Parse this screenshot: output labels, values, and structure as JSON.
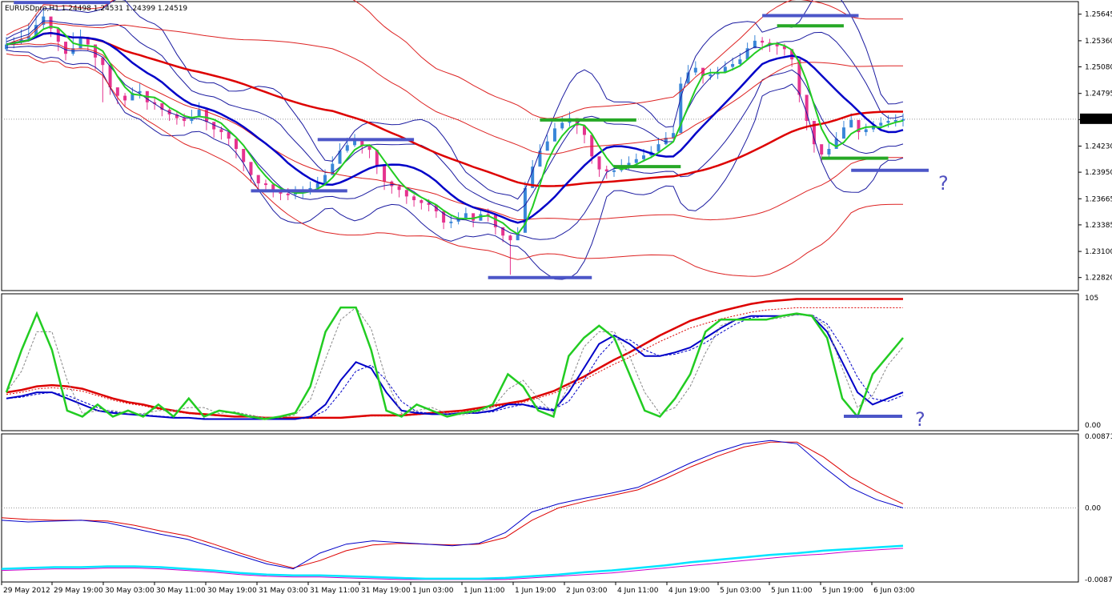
{
  "window": {
    "title": "EURUSDpro,H1  1.24498 1.24531 1.24399 1.24519",
    "current_price_label": "1.24519"
  },
  "colors": {
    "background": "#ffffff",
    "frame": "#000000",
    "bull_candle": "#3a86d8",
    "bear_candle": "#e5338f",
    "ma_fast": "#22cc22",
    "ma_mid": "#0000c8",
    "ma_slow": "#dd0000",
    "bands": "#1a1aa0",
    "bands_outer": "#dd2222",
    "annotation_blue": "#4c56c8",
    "annotation_green": "#26a826",
    "macd_signal": "#00e5ff",
    "macd_signal2": "#cc00cc",
    "question_mark": "#5050c0"
  },
  "annotations": {
    "question_marks": [
      "?",
      "?"
    ]
  },
  "chart_data": [
    {
      "type": "candlestick",
      "panel": "price",
      "symbol": "EURUSDpro",
      "timeframe": "H1",
      "ohlc": {
        "open": 1.24498,
        "high": 1.24531,
        "low": 1.24399,
        "close": 1.24519
      },
      "ylim": [
        1.2268,
        1.2578
      ],
      "y_ticks": [
        1.25645,
        1.2536,
        1.2508,
        1.24795,
        1.24515,
        1.2423,
        1.2395,
        1.23665,
        1.23385,
        1.231,
        1.2282
      ],
      "y_tick_labels": [
        "1.25645",
        "1.25360",
        "1.25080",
        "1.24795",
        "1.24515",
        "1.24230",
        "1.23950",
        "1.23665",
        "1.23385",
        "1.23100",
        "1.22820"
      ],
      "x_tick_labels": [
        "29 May 2012",
        "29 May 19:00",
        "30 May 03:00",
        "30 May 11:00",
        "30 May 19:00",
        "31 May 03:00",
        "31 May 11:00",
        "31 May 19:00",
        "1 Jun 03:00",
        "1 Jun 11:00",
        "1 Jun 19:00",
        "2 Jun 03:00",
        "4 Jun 11:00",
        "4 Jun 19:00",
        "5 Jun 03:00",
        "5 Jun 11:00",
        "5 Jun 19:00",
        "6 Jun 03:00"
      ],
      "closes": [
        1.2532,
        1.2535,
        1.2538,
        1.2541,
        1.2553,
        1.2562,
        1.2549,
        1.2535,
        1.2522,
        1.2528,
        1.254,
        1.2532,
        1.2518,
        1.251,
        1.2486,
        1.2477,
        1.2472,
        1.248,
        1.2482,
        1.247,
        1.2469,
        1.2462,
        1.2457,
        1.2453,
        1.245,
        1.2454,
        1.2462,
        1.2449,
        1.2441,
        1.2438,
        1.2431,
        1.242,
        1.2406,
        1.2392,
        1.2383,
        1.2382,
        1.2374,
        1.2372,
        1.2371,
        1.2374,
        1.2374,
        1.2378,
        1.2383,
        1.2392,
        1.2404,
        1.2418,
        1.2424,
        1.243,
        1.2423,
        1.2419,
        1.2402,
        1.2385,
        1.238,
        1.2376,
        1.2369,
        1.2365,
        1.2362,
        1.236,
        1.2353,
        1.2341,
        1.2342,
        1.2346,
        1.2351,
        1.2343,
        1.235,
        1.2349,
        1.2336,
        1.2327,
        1.2322,
        1.233,
        1.2378,
        1.2401,
        1.2418,
        1.2428,
        1.2442,
        1.2448,
        1.2453,
        1.2445,
        1.2435,
        1.2412,
        1.2398,
        1.2396,
        1.2397,
        1.2402,
        1.2405,
        1.2409,
        1.2413,
        1.2417,
        1.2425,
        1.2432,
        1.2437,
        1.249,
        1.2502,
        1.2507,
        1.2498,
        1.25,
        1.2502,
        1.2508,
        1.2511,
        1.2516,
        1.2528,
        1.2536,
        1.2534,
        1.2532,
        1.253,
        1.2527,
        1.2516,
        1.2478,
        1.245,
        1.2425,
        1.2414,
        1.242,
        1.2431,
        1.2443,
        1.2451,
        1.2438,
        1.2441,
        1.2445,
        1.2448,
        1.245,
        1.2451,
        1.2452
      ],
      "highs": [
        1.254,
        1.254,
        1.2548,
        1.2555,
        1.2565,
        1.257,
        1.256,
        1.2545,
        1.2532,
        1.2545,
        1.2548,
        1.254,
        1.2525,
        1.2515,
        1.2492,
        1.2482,
        1.248,
        1.2486,
        1.249,
        1.2476,
        1.2475,
        1.2468,
        1.2464,
        1.246,
        1.2458,
        1.2462,
        1.247,
        1.2455,
        1.2447,
        1.2444,
        1.2437,
        1.2426,
        1.2412,
        1.2398,
        1.2388,
        1.2387,
        1.2381,
        1.2377,
        1.2378,
        1.238,
        1.238,
        1.2385,
        1.239,
        1.2398,
        1.2412,
        1.2426,
        1.2432,
        1.2436,
        1.243,
        1.2425,
        1.241,
        1.2392,
        1.2386,
        1.2381,
        1.2374,
        1.2371,
        1.2366,
        1.2366,
        1.2358,
        1.2347,
        1.2349,
        1.2352,
        1.2357,
        1.2349,
        1.2356,
        1.2356,
        1.2343,
        1.2333,
        1.2328,
        1.2336,
        1.2385,
        1.2408,
        1.2425,
        1.2435,
        1.2448,
        1.2455,
        1.246,
        1.2452,
        1.2442,
        1.2418,
        1.2404,
        1.2402,
        1.2403,
        1.2409,
        1.2412,
        1.2415,
        1.242,
        1.2423,
        1.2432,
        1.2438,
        1.2444,
        1.2497,
        1.251,
        1.2514,
        1.2506,
        1.2506,
        1.2508,
        1.2514,
        1.2518,
        1.2523,
        1.2534,
        1.2542,
        1.254,
        1.2538,
        1.2535,
        1.2533,
        1.2523,
        1.2484,
        1.2457,
        1.243,
        1.242,
        1.2426,
        1.2438,
        1.245,
        1.2458,
        1.2444,
        1.2447,
        1.245,
        1.2454,
        1.2456,
        1.2457,
        1.2458
      ],
      "lows": [
        1.2525,
        1.2528,
        1.2532,
        1.2535,
        1.2545,
        1.2548,
        1.254,
        1.2525,
        1.2515,
        1.252,
        1.253,
        1.2525,
        1.2505,
        1.247,
        1.2478,
        1.2468,
        1.2465,
        1.2472,
        1.2474,
        1.2462,
        1.2462,
        1.2455,
        1.245,
        1.2446,
        1.2444,
        1.2447,
        1.2455,
        1.244,
        1.2432,
        1.243,
        1.2424,
        1.241,
        1.2396,
        1.2384,
        1.2375,
        1.2374,
        1.2368,
        1.2365,
        1.2365,
        1.2366,
        1.2367,
        1.2371,
        1.2376,
        1.2385,
        1.2396,
        1.241,
        1.2416,
        1.2422,
        1.2415,
        1.241,
        1.2393,
        1.2376,
        1.2372,
        1.2368,
        1.2361,
        1.2358,
        1.2355,
        1.2353,
        1.2346,
        1.2334,
        1.2335,
        1.2339,
        1.2344,
        1.2336,
        1.2343,
        1.2342,
        1.2328,
        1.232,
        1.2285,
        1.2322,
        1.237,
        1.2393,
        1.241,
        1.242,
        1.2434,
        1.244,
        1.2444,
        1.2436,
        1.2426,
        1.2404,
        1.239,
        1.2388,
        1.239,
        1.2395,
        1.2398,
        1.2402,
        1.2406,
        1.241,
        1.2418,
        1.2424,
        1.243,
        1.248,
        1.2495,
        1.2499,
        1.249,
        1.2494,
        1.2495,
        1.2501,
        1.2504,
        1.2508,
        1.252,
        1.2528,
        1.2526,
        1.2524,
        1.2521,
        1.252,
        1.2508,
        1.247,
        1.244,
        1.2416,
        1.2406,
        1.241,
        1.2424,
        1.2436,
        1.2443,
        1.243,
        1.2434,
        1.2438,
        1.2441,
        1.2443,
        1.2444,
        1.2444
      ]
    },
    {
      "type": "line",
      "panel": "stochastic",
      "ylim": [
        0,
        105
      ],
      "y_tick_labels": [
        "105",
        "0.00"
      ],
      "series": [
        {
          "values": [
            25,
            60,
            90,
            60,
            10,
            5,
            15,
            5,
            10,
            5,
            15,
            5,
            20,
            5,
            10,
            8,
            5,
            3,
            5,
            8,
            30,
            75,
            95,
            95,
            60,
            10,
            5,
            15,
            10,
            5,
            8,
            10,
            15,
            40,
            30,
            10,
            5,
            55,
            70,
            80,
            70,
            40,
            10,
            5,
            20,
            40,
            75,
            85,
            85,
            85,
            85,
            88,
            90,
            88,
            70,
            20,
            5,
            40,
            55,
            70
          ]
        },
        {
          "values": [
            20,
            22,
            25,
            25,
            20,
            15,
            10,
            8,
            7,
            6,
            5,
            4,
            4,
            3,
            3,
            3,
            3,
            3,
            3,
            3,
            5,
            15,
            35,
            50,
            45,
            25,
            10,
            8,
            7,
            7,
            8,
            8,
            10,
            15,
            15,
            12,
            10,
            25,
            45,
            65,
            72,
            65,
            55,
            55,
            58,
            62,
            70,
            78,
            85,
            88,
            88,
            88,
            90,
            88,
            75,
            50,
            25,
            15,
            20,
            25
          ]
        },
        {
          "values": [
            25,
            27,
            30,
            31,
            30,
            28,
            24,
            20,
            17,
            15,
            12,
            10,
            8,
            7,
            6,
            5,
            5,
            4,
            4,
            4,
            4,
            4,
            4,
            5,
            6,
            6,
            6,
            7,
            8,
            9,
            10,
            12,
            14,
            16,
            18,
            22,
            26,
            32,
            38,
            45,
            52,
            58,
            65,
            72,
            78,
            84,
            88,
            92,
            95,
            98,
            100,
            101,
            102,
            102,
            102,
            102,
            102,
            102,
            102,
            102
          ]
        }
      ]
    },
    {
      "type": "line",
      "panel": "macd",
      "ylim": [
        -0.009,
        0.009
      ],
      "y_tick_labels": [
        "0.00871",
        "0.00",
        "-0.00871"
      ],
      "series": [
        {
          "values": [
            -0.0015,
            -0.0017,
            -0.0016,
            -0.0015,
            -0.0018,
            -0.0025,
            -0.0032,
            -0.0038,
            -0.0048,
            -0.0058,
            -0.0068,
            -0.0074,
            -0.0055,
            -0.0044,
            -0.004,
            -0.0042,
            -0.0044,
            -0.0046,
            -0.0043,
            -0.003,
            -0.0005,
            0.0005,
            0.0012,
            0.0018,
            0.0025,
            0.004,
            0.0055,
            0.0068,
            0.0078,
            0.0082,
            0.0078,
            0.005,
            0.0025,
            0.001,
            0.0
          ]
        },
        {
          "values": [
            -0.0012,
            -0.0014,
            -0.0015,
            -0.0015,
            -0.0016,
            -0.0021,
            -0.0028,
            -0.0034,
            -0.0044,
            -0.0055,
            -0.0065,
            -0.0073,
            -0.0064,
            -0.0052,
            -0.0045,
            -0.0043,
            -0.0044,
            -0.0045,
            -0.0044,
            -0.0036,
            -0.0015,
            0.0,
            0.0008,
            0.0015,
            0.0022,
            0.0035,
            0.005,
            0.0063,
            0.0074,
            0.008,
            0.008,
            0.0062,
            0.0038,
            0.002,
            0.0005
          ]
        },
        {
          "values": [
            -0.0074,
            -0.0073,
            -0.0072,
            -0.0072,
            -0.0071,
            -0.0071,
            -0.0072,
            -0.0074,
            -0.0076,
            -0.0079,
            -0.0081,
            -0.0082,
            -0.0082,
            -0.0083,
            -0.0084,
            -0.0085,
            -0.0086,
            -0.0086,
            -0.0086,
            -0.0085,
            -0.0083,
            -0.0081,
            -0.0078,
            -0.0076,
            -0.0073,
            -0.007,
            -0.0066,
            -0.0063,
            -0.006,
            -0.0057,
            -0.0055,
            -0.0052,
            -0.005,
            -0.0048,
            -0.0046
          ]
        },
        {
          "values": [
            -0.0076,
            -0.0075,
            -0.0074,
            -0.0074,
            -0.0073,
            -0.0073,
            -0.0074,
            -0.0076,
            -0.0078,
            -0.0081,
            -0.0083,
            -0.0084,
            -0.0084,
            -0.0085,
            -0.0086,
            -0.0087,
            -0.0087,
            -0.0087,
            -0.0087,
            -0.0087,
            -0.0085,
            -0.0083,
            -0.0081,
            -0.0079,
            -0.0076,
            -0.0073,
            -0.007,
            -0.0067,
            -0.0064,
            -0.0061,
            -0.0058,
            -0.0056,
            -0.0053,
            -0.0051,
            -0.0049
          ]
        }
      ]
    }
  ]
}
